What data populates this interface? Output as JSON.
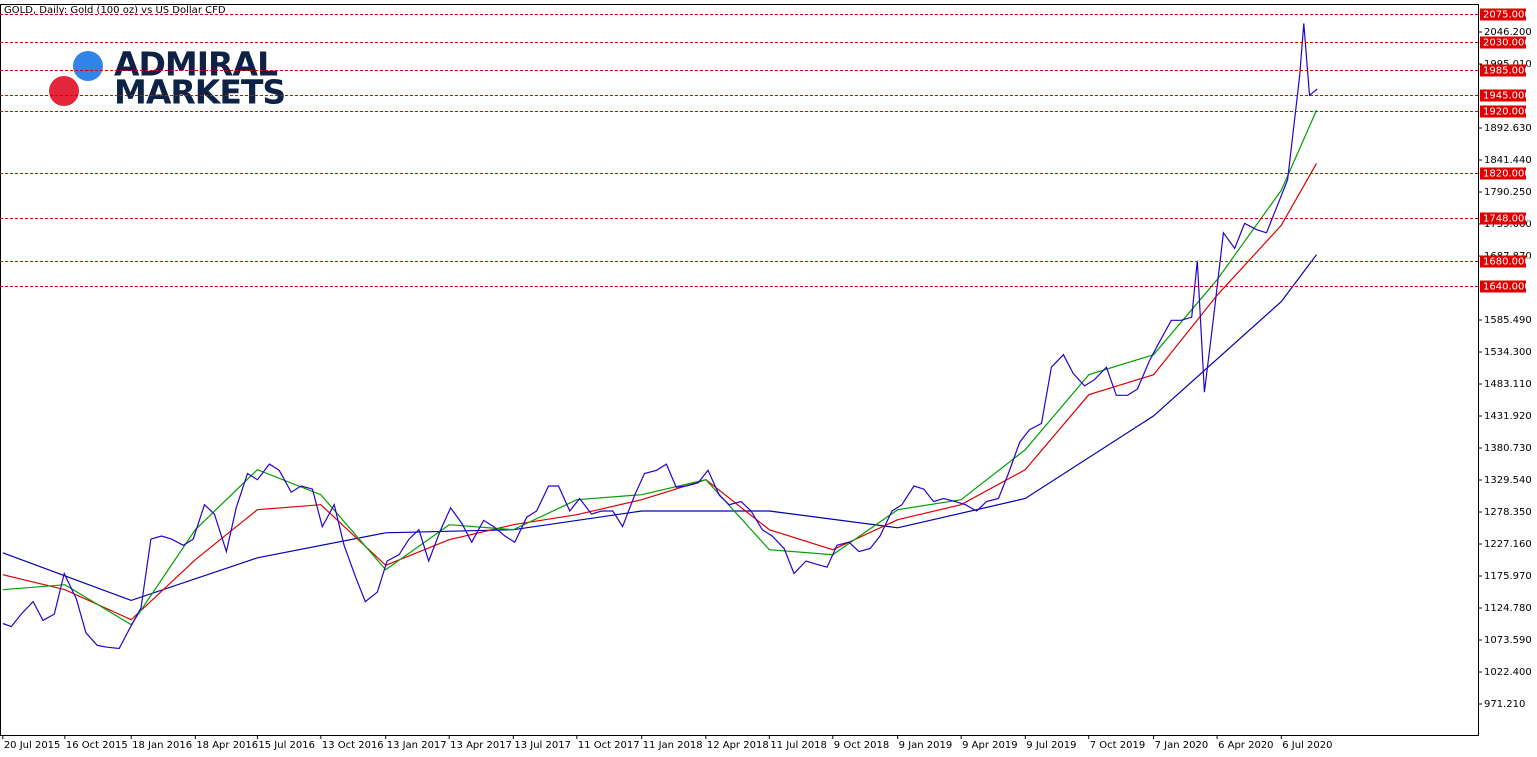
{
  "chart_data": {
    "type": "line",
    "title": "GOLD, Daily:  Gold (100 oz) vs US Dollar CFD",
    "annotations": [
      "ADMIRAL",
      "MARKETS"
    ],
    "xlim": [
      "2015-07-16",
      "2021-04-11"
    ],
    "ylim": [
      921.6,
      2091.0
    ],
    "yticks": [
      {
        "value": 2046.2,
        "label": "2046.200"
      },
      {
        "value": 1995.01,
        "label": "1995.010"
      },
      {
        "value": 1892.63,
        "label": "1892.630"
      },
      {
        "value": 1841.44,
        "label": "1841.440"
      },
      {
        "value": 1790.25,
        "label": "1790.250"
      },
      {
        "value": 1739.06,
        "label": "1739.060"
      },
      {
        "value": 1687.87,
        "label": "1687.870"
      },
      {
        "value": 1585.49,
        "label": "1585.490"
      },
      {
        "value": 1534.3,
        "label": "1534.300"
      },
      {
        "value": 1483.11,
        "label": "1483.110"
      },
      {
        "value": 1431.92,
        "label": "1431.920"
      },
      {
        "value": 1380.73,
        "label": "1380.730"
      },
      {
        "value": 1329.54,
        "label": "1329.540"
      },
      {
        "value": 1278.35,
        "label": "1278.350"
      },
      {
        "value": 1227.16,
        "label": "1227.160"
      },
      {
        "value": 1175.97,
        "label": "1175.970"
      },
      {
        "value": 1124.78,
        "label": "1124.780"
      },
      {
        "value": 1073.59,
        "label": "1073.590"
      },
      {
        "value": 1022.4,
        "label": "1022.400"
      },
      {
        "value": 971.21,
        "label": "971.210"
      }
    ],
    "xticks": [
      {
        "value": "2015-07-20",
        "label": "20 Jul 2015"
      },
      {
        "value": "2015-10-16",
        "label": "16 Oct 2015"
      },
      {
        "value": "2016-01-18",
        "label": "18 Jan 2016"
      },
      {
        "value": "2016-04-18",
        "label": "18 Apr 2016"
      },
      {
        "value": "2016-07-15",
        "label": "15 Jul 2016"
      },
      {
        "value": "2016-10-13",
        "label": "13 Oct 2016"
      },
      {
        "value": "2017-01-13",
        "label": "13 Jan 2017"
      },
      {
        "value": "2017-04-13",
        "label": "13 Apr 2017"
      },
      {
        "value": "2017-07-13",
        "label": "13 Jul 2017"
      },
      {
        "value": "2017-10-11",
        "label": "11 Oct 2017"
      },
      {
        "value": "2018-01-11",
        "label": "11 Jan 2018"
      },
      {
        "value": "2018-04-12",
        "label": "12 Apr 2018"
      },
      {
        "value": "2018-07-11",
        "label": "11 Jul 2018"
      },
      {
        "value": "2018-10-09",
        "label": "9 Oct 2018"
      },
      {
        "value": "2019-01-09",
        "label": "9 Jan 2019"
      },
      {
        "value": "2019-04-09",
        "label": "9 Apr 2019"
      },
      {
        "value": "2019-07-09",
        "label": "9 Jul 2019"
      },
      {
        "value": "2019-10-07",
        "label": "7 Oct 2019"
      },
      {
        "value": "2020-01-07",
        "label": "7 Jan 2020"
      },
      {
        "value": "2020-04-06",
        "label": "6 Apr 2020"
      },
      {
        "value": "2020-07-06",
        "label": "6 Jul 2020"
      }
    ],
    "levels": [
      {
        "value": 2075,
        "label": "2075.000"
      },
      {
        "value": 2030,
        "label": "2030.000"
      },
      {
        "value": 1985,
        "label": "1985.000"
      },
      {
        "value": 1945,
        "label": "1945.000"
      },
      {
        "value": 1920,
        "label": "1920.000"
      },
      {
        "value": 1820,
        "label": "1820.000"
      },
      {
        "value": 1748,
        "label": "1748.000"
      },
      {
        "value": 1680,
        "label": "1680.000"
      },
      {
        "value": 1640,
        "label": "1640.000"
      }
    ],
    "level_color": "#e00000",
    "series": [
      {
        "color": "#0000b4",
        "x": [
          "2015-07-20",
          "2016-01-18",
          "2016-07-15",
          "2017-01-13",
          "2017-07-13",
          "2018-01-11",
          "2018-07-11",
          "2019-01-09",
          "2019-07-09",
          "2020-01-07",
          "2020-07-06",
          "2020-08-25"
        ],
        "values": [
          1213,
          1137,
          1205,
          1245,
          1250,
          1280,
          1280,
          1253,
          1300,
          1432,
          1615,
          1690
        ]
      },
      {
        "color": "#e00000",
        "x": [
          "2015-07-20",
          "2015-10-16",
          "2016-01-18",
          "2016-04-18",
          "2016-07-15",
          "2016-10-13",
          "2017-01-13",
          "2017-04-13",
          "2017-07-13",
          "2017-10-11",
          "2018-01-11",
          "2018-04-12",
          "2018-07-11",
          "2018-10-09",
          "2019-01-09",
          "2019-04-09",
          "2019-07-09",
          "2019-10-07",
          "2020-01-07",
          "2020-04-06",
          "2020-07-06",
          "2020-08-25"
        ],
        "values": [
          1178,
          1154,
          1106,
          1202,
          1282,
          1290,
          1193,
          1234,
          1258,
          1274,
          1298,
          1330,
          1250,
          1218,
          1266,
          1290,
          1346,
          1466,
          1498,
          1625,
          1737,
          1836
        ]
      },
      {
        "color": "#00a000",
        "x": [
          "2015-07-20",
          "2015-10-16",
          "2016-01-18",
          "2016-04-18",
          "2016-07-15",
          "2016-10-13",
          "2017-01-13",
          "2017-04-13",
          "2017-07-13",
          "2017-10-11",
          "2018-01-11",
          "2018-04-12",
          "2018-07-11",
          "2018-10-09",
          "2019-01-09",
          "2019-04-09",
          "2019-07-09",
          "2019-10-07",
          "2020-01-07",
          "2020-04-06",
          "2020-07-06",
          "2020-08-25"
        ],
        "values": [
          1154,
          1162,
          1098,
          1250,
          1346,
          1306,
          1186,
          1258,
          1250,
          1298,
          1306,
          1330,
          1218,
          1210,
          1282,
          1298,
          1378,
          1498,
          1530,
          1650,
          1793,
          1921
        ]
      },
      {
        "color": "#2a00d0",
        "x": [
          "2015-07-20",
          "2015-08-01",
          "2015-08-15",
          "2015-09-01",
          "2015-09-15",
          "2015-10-01",
          "2015-10-15",
          "2015-11-01",
          "2015-11-15",
          "2015-12-01",
          "2015-12-15",
          "2016-01-01",
          "2016-01-15",
          "2016-02-01",
          "2016-02-15",
          "2016-03-01",
          "2016-03-15",
          "2016-04-01",
          "2016-04-15",
          "2016-05-01",
          "2016-05-15",
          "2016-06-01",
          "2016-06-15",
          "2016-07-01",
          "2016-07-15",
          "2016-08-01",
          "2016-08-15",
          "2016-09-01",
          "2016-09-15",
          "2016-10-01",
          "2016-10-15",
          "2016-11-01",
          "2016-11-15",
          "2016-12-01",
          "2016-12-15",
          "2017-01-01",
          "2017-01-15",
          "2017-02-01",
          "2017-02-15",
          "2017-03-01",
          "2017-03-15",
          "2017-04-01",
          "2017-04-15",
          "2017-05-01",
          "2017-05-15",
          "2017-06-01",
          "2017-06-15",
          "2017-07-01",
          "2017-07-15",
          "2017-08-01",
          "2017-08-15",
          "2017-09-01",
          "2017-09-15",
          "2017-10-01",
          "2017-10-15",
          "2017-11-01",
          "2017-11-15",
          "2017-12-01",
          "2017-12-15",
          "2018-01-01",
          "2018-01-15",
          "2018-02-01",
          "2018-02-15",
          "2018-03-01",
          "2018-03-15",
          "2018-04-01",
          "2018-04-15",
          "2018-05-01",
          "2018-05-15",
          "2018-06-01",
          "2018-06-15",
          "2018-07-01",
          "2018-07-15",
          "2018-08-01",
          "2018-08-15",
          "2018-09-01",
          "2018-09-15",
          "2018-10-01",
          "2018-10-15",
          "2018-11-01",
          "2018-11-15",
          "2018-12-01",
          "2018-12-15",
          "2019-01-01",
          "2019-01-15",
          "2019-02-01",
          "2019-02-15",
          "2019-03-01",
          "2019-03-15",
          "2019-04-01",
          "2019-04-15",
          "2019-05-01",
          "2019-05-15",
          "2019-06-01",
          "2019-06-15",
          "2019-07-01",
          "2019-07-15",
          "2019-08-01",
          "2019-08-15",
          "2019-09-01",
          "2019-09-15",
          "2019-10-01",
          "2019-10-15",
          "2019-11-01",
          "2019-11-15",
          "2019-12-01",
          "2019-12-15",
          "2020-01-01",
          "2020-01-15",
          "2020-02-01",
          "2020-02-15",
          "2020-03-01",
          "2020-03-09",
          "2020-03-19",
          "2020-04-01",
          "2020-04-15",
          "2020-05-01",
          "2020-05-15",
          "2020-06-01",
          "2020-06-15",
          "2020-07-01",
          "2020-07-15",
          "2020-08-01",
          "2020-08-07",
          "2020-08-15",
          "2020-08-26"
        ],
        "values": [
          1100,
          1095,
          1115,
          1135,
          1105,
          1115,
          1180,
          1140,
          1085,
          1065,
          1062,
          1060,
          1090,
          1125,
          1235,
          1240,
          1235,
          1225,
          1235,
          1290,
          1275,
          1215,
          1285,
          1340,
          1330,
          1355,
          1345,
          1310,
          1320,
          1315,
          1255,
          1290,
          1225,
          1175,
          1135,
          1150,
          1200,
          1210,
          1235,
          1250,
          1200,
          1250,
          1285,
          1260,
          1230,
          1265,
          1255,
          1240,
          1230,
          1270,
          1280,
          1320,
          1320,
          1280,
          1300,
          1275,
          1280,
          1280,
          1255,
          1305,
          1340,
          1345,
          1355,
          1318,
          1320,
          1325,
          1345,
          1305,
          1290,
          1295,
          1280,
          1250,
          1240,
          1220,
          1180,
          1200,
          1195,
          1190,
          1225,
          1230,
          1215,
          1220,
          1240,
          1280,
          1290,
          1320,
          1315,
          1295,
          1300,
          1295,
          1290,
          1280,
          1295,
          1300,
          1340,
          1390,
          1410,
          1420,
          1510,
          1530,
          1500,
          1480,
          1490,
          1510,
          1465,
          1465,
          1475,
          1520,
          1550,
          1585,
          1585,
          1590,
          1680,
          1470,
          1590,
          1725,
          1700,
          1740,
          1730,
          1725,
          1770,
          1810,
          1975,
          2060,
          1945,
          1955
        ]
      }
    ]
  }
}
